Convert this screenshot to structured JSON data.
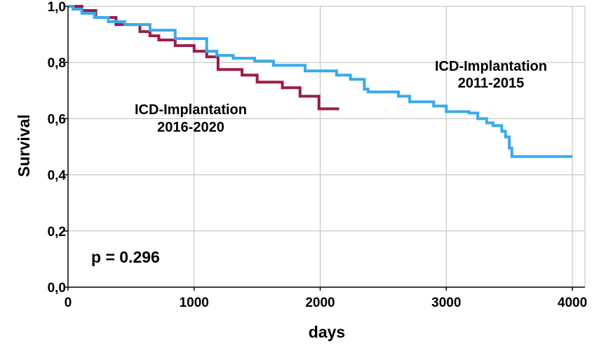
{
  "chart_data": {
    "type": "line",
    "xlabel": "days",
    "ylabel": "Survival",
    "xlim": [
      0,
      4100
    ],
    "ylim": [
      0,
      1.0
    ],
    "x_ticks": [
      0,
      1000,
      2000,
      3000,
      4000
    ],
    "x_tick_labels": [
      "0",
      "1000",
      "2000",
      "3000",
      "4000"
    ],
    "y_ticks": [
      0,
      0.2,
      0.4,
      0.6,
      0.8,
      1.0
    ],
    "y_tick_labels": [
      "0,0",
      "0,2",
      "0,4",
      "0,6",
      "0,8",
      "1,0"
    ],
    "grid": true,
    "annotation": "p = 0.296",
    "series": [
      {
        "name_line1": "ICD-Implantation",
        "name_line2": "2011-2015",
        "color": "#3aaaea",
        "steps": [
          [
            0,
            1.0
          ],
          [
            40,
            0.99
          ],
          [
            110,
            0.975
          ],
          [
            210,
            0.96
          ],
          [
            320,
            0.945
          ],
          [
            450,
            0.935
          ],
          [
            650,
            0.915
          ],
          [
            850,
            0.885
          ],
          [
            1100,
            0.84
          ],
          [
            1180,
            0.825
          ],
          [
            1310,
            0.815
          ],
          [
            1480,
            0.805
          ],
          [
            1630,
            0.79
          ],
          [
            1880,
            0.77
          ],
          [
            2130,
            0.755
          ],
          [
            2240,
            0.74
          ],
          [
            2350,
            0.705
          ],
          [
            2380,
            0.695
          ],
          [
            2620,
            0.68
          ],
          [
            2710,
            0.66
          ],
          [
            2900,
            0.645
          ],
          [
            3000,
            0.625
          ],
          [
            3180,
            0.62
          ],
          [
            3250,
            0.6
          ],
          [
            3320,
            0.585
          ],
          [
            3370,
            0.575
          ],
          [
            3440,
            0.555
          ],
          [
            3470,
            0.535
          ],
          [
            3500,
            0.495
          ],
          [
            3520,
            0.465
          ],
          [
            4000,
            0.465
          ]
        ]
      },
      {
        "name_line1": "ICD-Implantation",
        "name_line2": "2016-2020",
        "color": "#9b1c4e",
        "steps": [
          [
            0,
            1.0
          ],
          [
            110,
            0.985
          ],
          [
            220,
            0.96
          ],
          [
            380,
            0.935
          ],
          [
            570,
            0.91
          ],
          [
            650,
            0.895
          ],
          [
            720,
            0.88
          ],
          [
            850,
            0.86
          ],
          [
            1000,
            0.84
          ],
          [
            1100,
            0.82
          ],
          [
            1190,
            0.775
          ],
          [
            1380,
            0.755
          ],
          [
            1500,
            0.73
          ],
          [
            1700,
            0.71
          ],
          [
            1840,
            0.68
          ],
          [
            1990,
            0.635
          ],
          [
            2150,
            0.635
          ]
        ]
      }
    ]
  }
}
